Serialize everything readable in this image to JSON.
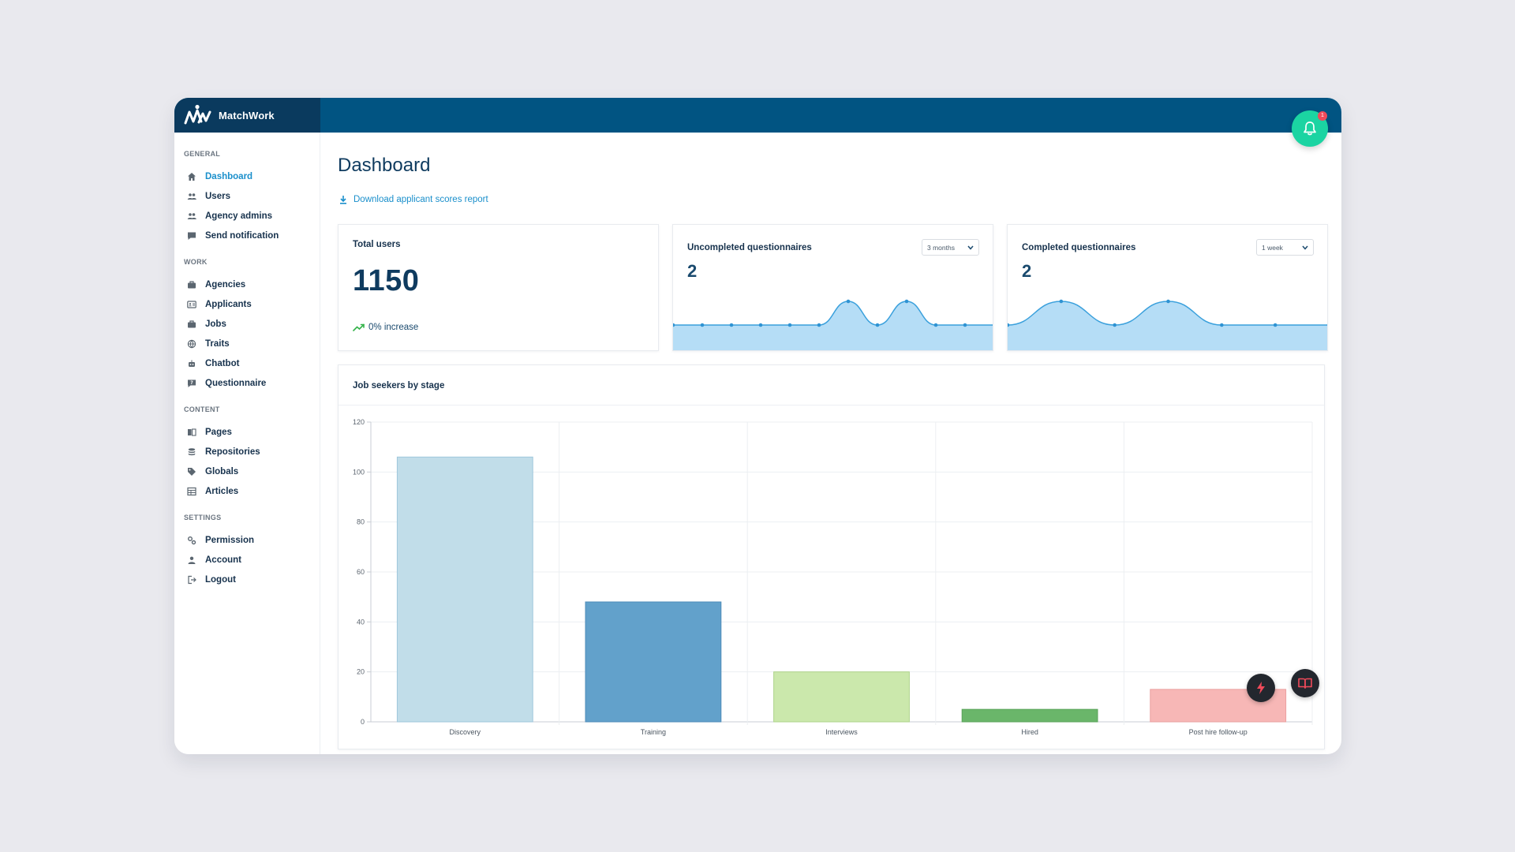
{
  "brand": {
    "name": "MatchWork",
    "logo_icon": "matchwork-logo-icon"
  },
  "notifications": {
    "count": "1",
    "icon": "bell-icon"
  },
  "sidebar": {
    "sections": [
      {
        "title": "GENERAL",
        "items": [
          {
            "label": "Dashboard",
            "icon": "home-icon",
            "active": true
          },
          {
            "label": "Users",
            "icon": "users-icon"
          },
          {
            "label": "Agency admins",
            "icon": "users-icon"
          },
          {
            "label": "Send notification",
            "icon": "message-icon"
          }
        ]
      },
      {
        "title": "WORK",
        "items": [
          {
            "label": "Agencies",
            "icon": "briefcase-icon"
          },
          {
            "label": "Applicants",
            "icon": "id-card-icon"
          },
          {
            "label": "Jobs",
            "icon": "briefcase-icon"
          },
          {
            "label": "Traits",
            "icon": "globe-icon"
          },
          {
            "label": "Chatbot",
            "icon": "robot-icon"
          },
          {
            "label": "Questionnaire",
            "icon": "question-icon"
          }
        ]
      },
      {
        "title": "CONTENT",
        "items": [
          {
            "label": "Pages",
            "icon": "pages-icon"
          },
          {
            "label": "Repositories",
            "icon": "database-icon"
          },
          {
            "label": "Globals",
            "icon": "tag-icon"
          },
          {
            "label": "Articles",
            "icon": "table-icon"
          }
        ]
      },
      {
        "title": "SETTINGS",
        "items": [
          {
            "label": "Permission",
            "icon": "gears-icon"
          },
          {
            "label": "Account",
            "icon": "user-icon"
          },
          {
            "label": "Logout",
            "icon": "logout-icon"
          }
        ]
      }
    ]
  },
  "main": {
    "title": "Dashboard",
    "download_link": "Download applicant scores report",
    "total_users": {
      "title": "Total users",
      "value": "1150",
      "trend": "0% increase"
    },
    "uncompleted": {
      "title": "Uncompleted questionnaires",
      "value": "2",
      "period": "3 months"
    },
    "completed": {
      "title": "Completed questionnaires",
      "value": "2",
      "period": "1 week"
    },
    "job_seekers": {
      "title": "Job seekers by stage"
    }
  },
  "colors": {
    "topbar": "#015482",
    "brand_bg": "#0a3a5e",
    "accent": "#1a8fcb",
    "bell": "#1bd4a2",
    "area_fill": "#b5ddf6",
    "area_line": "#3aa0dc"
  },
  "chart_data": [
    {
      "type": "area",
      "title": "Uncompleted questionnaires",
      "x": [
        0,
        1,
        2,
        3,
        4,
        5,
        6,
        7,
        8,
        9,
        10,
        11
      ],
      "values": [
        0,
        0,
        0,
        0,
        0,
        0,
        1,
        0,
        1,
        0,
        0,
        0
      ],
      "ylim": [
        0,
        1
      ],
      "grid": false
    },
    {
      "type": "area",
      "title": "Completed questionnaires",
      "x": [
        0,
        1,
        2,
        3,
        4,
        5,
        6
      ],
      "values": [
        0,
        1,
        0,
        1,
        0,
        0,
        0
      ],
      "ylim": [
        0,
        1
      ],
      "grid": false
    },
    {
      "type": "bar",
      "title": "Job seekers by stage",
      "categories": [
        "Discovery",
        "Training",
        "Interviews",
        "Hired",
        "Post hire follow-up"
      ],
      "values": [
        106,
        48,
        20,
        5,
        13
      ],
      "colors": [
        "#c1dde9",
        "#62a1cb",
        "#cbe8ac",
        "#6ab66a",
        "#f7b7b6"
      ],
      "border_colors": [
        "#9fc6dc",
        "#4f8cb8",
        "#aed48b",
        "#5aa35a",
        "#eaa0a0"
      ],
      "yticks": [
        0,
        20,
        40,
        60,
        80,
        100,
        120
      ],
      "ylim": [
        0,
        120
      ],
      "xlabel": "",
      "ylabel": "",
      "grid": true,
      "legend": "none"
    }
  ]
}
